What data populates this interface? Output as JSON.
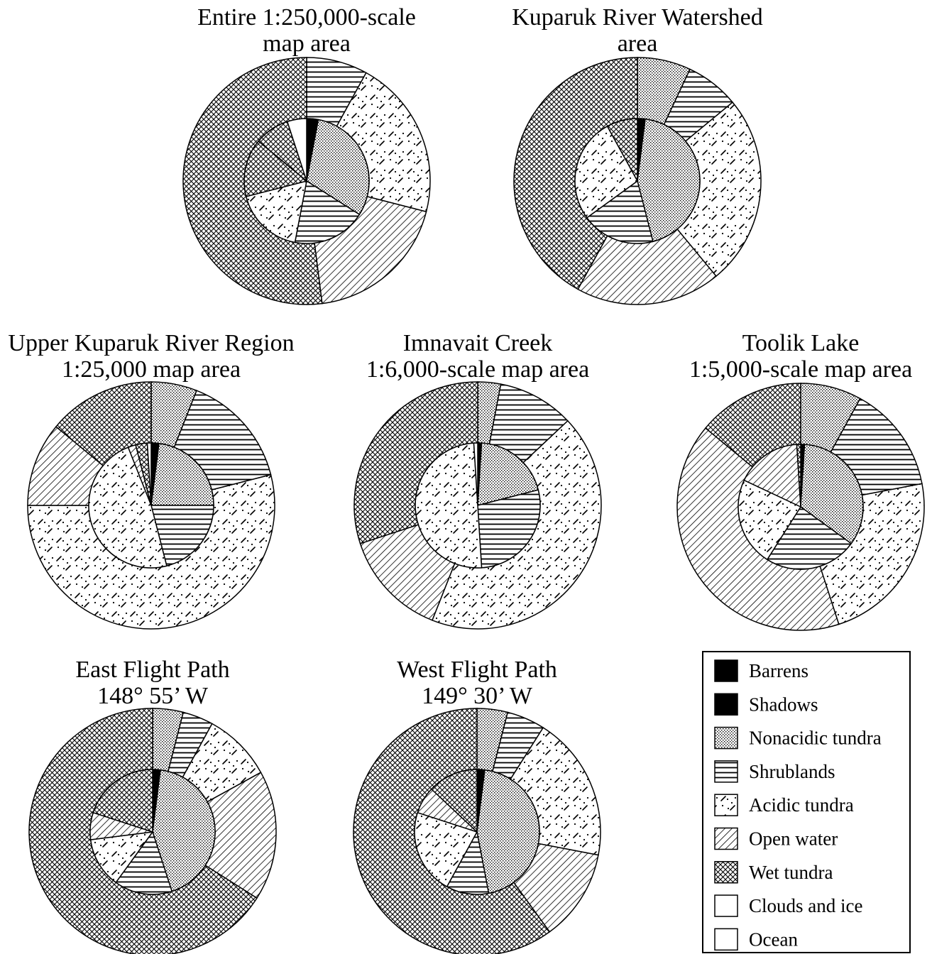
{
  "legend": [
    {
      "key": "barrens",
      "label": "Barrens",
      "pattern": "solid-black"
    },
    {
      "key": "shadows",
      "label": "Shadows",
      "pattern": "solid-black"
    },
    {
      "key": "nonacidic",
      "label": "Nonacidic tundra",
      "pattern": "stipple"
    },
    {
      "key": "shrublands",
      "label": "Shrublands",
      "pattern": "horizontal-lines"
    },
    {
      "key": "acidic",
      "label": "Acidic tundra",
      "pattern": "dash-dots"
    },
    {
      "key": "water",
      "label": "Open water",
      "pattern": "diagonal-lines"
    },
    {
      "key": "wet",
      "label": "Wet tundra",
      "pattern": "crosshatch"
    },
    {
      "key": "clouds",
      "label": "Clouds and ice",
      "pattern": "white"
    },
    {
      "key": "ocean",
      "label": "Ocean",
      "pattern": "white"
    }
  ],
  "chart_data": [
    {
      "type": "pie",
      "variant": "donut",
      "title_lines": [
        "Entire 1:250,000-scale",
        "map area"
      ],
      "outer_ring": [
        {
          "category": "shrublands",
          "value": 8
        },
        {
          "category": "acidic",
          "value": 21
        },
        {
          "category": "water",
          "value": 19
        },
        {
          "category": "wet",
          "value": 52
        }
      ],
      "inner_pie": [
        {
          "category": "barrens",
          "value": 3
        },
        {
          "category": "nonacidic",
          "value": 31
        },
        {
          "category": "shrublands",
          "value": 19
        },
        {
          "category": "acidic",
          "value": 18
        },
        {
          "category": "wet",
          "value": 15
        },
        {
          "category": "wet",
          "value": 9
        },
        {
          "category": "clouds",
          "value": 5
        }
      ]
    },
    {
      "type": "pie",
      "variant": "donut",
      "title_lines": [
        "Kuparuk River Watershed",
        "area"
      ],
      "outer_ring": [
        {
          "category": "nonacidic",
          "value": 7
        },
        {
          "category": "shrublands",
          "value": 7
        },
        {
          "category": "acidic",
          "value": 25
        },
        {
          "category": "water",
          "value": 19
        },
        {
          "category": "wet",
          "value": 42
        }
      ],
      "inner_pie": [
        {
          "category": "barrens",
          "value": 2
        },
        {
          "category": "nonacidic",
          "value": 44
        },
        {
          "category": "shrublands",
          "value": 19
        },
        {
          "category": "acidic",
          "value": 27
        },
        {
          "category": "wet",
          "value": 8
        }
      ]
    },
    {
      "type": "pie",
      "variant": "donut",
      "title_lines": [
        "Upper Kuparuk River Region",
        "1:25,000 map area"
      ],
      "outer_ring": [
        {
          "category": "nonacidic",
          "value": 6
        },
        {
          "category": "shrublands",
          "value": 15
        },
        {
          "category": "acidic",
          "value": 54
        },
        {
          "category": "water",
          "value": 11
        },
        {
          "category": "wet",
          "value": 14
        }
      ],
      "inner_pie": [
        {
          "category": "barrens",
          "value": 2
        },
        {
          "category": "nonacidic",
          "value": 23
        },
        {
          "category": "shrublands",
          "value": 21
        },
        {
          "category": "acidic",
          "value": 48
        },
        {
          "category": "water",
          "value": 2
        },
        {
          "category": "wet",
          "value": 3
        },
        {
          "category": "clouds",
          "value": 1
        }
      ]
    },
    {
      "type": "pie",
      "variant": "donut",
      "title_lines": [
        "Imnavait Creek",
        "1:6,000-scale map area"
      ],
      "outer_ring": [
        {
          "category": "nonacidic",
          "value": 3
        },
        {
          "category": "shrublands",
          "value": 10
        },
        {
          "category": "acidic",
          "value": 43
        },
        {
          "category": "water",
          "value": 14
        },
        {
          "category": "wet",
          "value": 30
        }
      ],
      "inner_pie": [
        {
          "category": "barrens",
          "value": 1
        },
        {
          "category": "nonacidic",
          "value": 20
        },
        {
          "category": "shrublands",
          "value": 28
        },
        {
          "category": "acidic",
          "value": 50
        },
        {
          "category": "clouds",
          "value": 1
        }
      ]
    },
    {
      "type": "pie",
      "variant": "donut",
      "title_lines": [
        "Toolik Lake",
        "1:5,000-scale map area"
      ],
      "outer_ring": [
        {
          "category": "nonacidic",
          "value": 8
        },
        {
          "category": "shrublands",
          "value": 14
        },
        {
          "category": "acidic",
          "value": 23
        },
        {
          "category": "water",
          "value": 41
        },
        {
          "category": "wet",
          "value": 14
        }
      ],
      "inner_pie": [
        {
          "category": "barrens",
          "value": 1
        },
        {
          "category": "nonacidic",
          "value": 34
        },
        {
          "category": "shrublands",
          "value": 24
        },
        {
          "category": "acidic",
          "value": 23
        },
        {
          "category": "water",
          "value": 17
        },
        {
          "category": "wet",
          "value": 1
        }
      ]
    },
    {
      "type": "pie",
      "variant": "donut",
      "title_lines": [
        "East Flight Path",
        "148°  55’ W"
      ],
      "outer_ring": [
        {
          "category": "nonacidic",
          "value": 4
        },
        {
          "category": "shrublands",
          "value": 4
        },
        {
          "category": "acidic",
          "value": 9
        },
        {
          "category": "water",
          "value": 17
        },
        {
          "category": "wet",
          "value": 66
        }
      ],
      "inner_pie": [
        {
          "category": "barrens",
          "value": 2
        },
        {
          "category": "nonacidic",
          "value": 43
        },
        {
          "category": "shrublands",
          "value": 15
        },
        {
          "category": "acidic",
          "value": 13
        },
        {
          "category": "water",
          "value": 7
        },
        {
          "category": "wet",
          "value": 20
        }
      ]
    },
    {
      "type": "pie",
      "variant": "donut",
      "title_lines": [
        "West Flight Path",
        "149° 30’ W"
      ],
      "outer_ring": [
        {
          "category": "nonacidic",
          "value": 4
        },
        {
          "category": "shrublands",
          "value": 5
        },
        {
          "category": "acidic",
          "value": 19
        },
        {
          "category": "water",
          "value": 12
        },
        {
          "category": "wet",
          "value": 60
        }
      ],
      "inner_pie": [
        {
          "category": "barrens",
          "value": 2
        },
        {
          "category": "nonacidic",
          "value": 45
        },
        {
          "category": "shrublands",
          "value": 11
        },
        {
          "category": "acidic",
          "value": 22
        },
        {
          "category": "water",
          "value": 7
        },
        {
          "category": "wet",
          "value": 13
        }
      ]
    }
  ]
}
